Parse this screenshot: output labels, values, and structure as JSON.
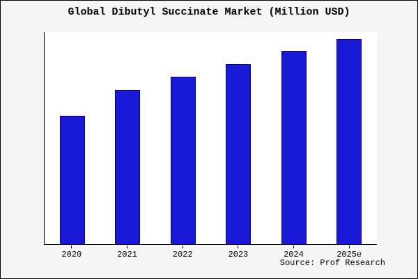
{
  "title": "Global Dibutyl Succinate Market (Million USD)",
  "source": "Source: Prof Research",
  "colors": {
    "bar_fill": "#1a1ad6",
    "bar_edge": "#00008b",
    "figure_background": "#f5f5f5",
    "plot_background": "#ffffff",
    "text": "#000000"
  },
  "chart_data": {
    "type": "bar",
    "title": "Global Dibutyl Succinate Market (Million USD)",
    "categories": [
      "2020",
      "2021",
      "2022",
      "2023",
      "2024",
      "2025e"
    ],
    "values": [
      188,
      225,
      245,
      263,
      282,
      300
    ],
    "xlabel": "",
    "ylabel": "",
    "ylim": [
      0,
      310
    ],
    "y_tick_labels_visible": false,
    "grid": false,
    "legend": false,
    "annotation": "Source: Prof Research"
  }
}
